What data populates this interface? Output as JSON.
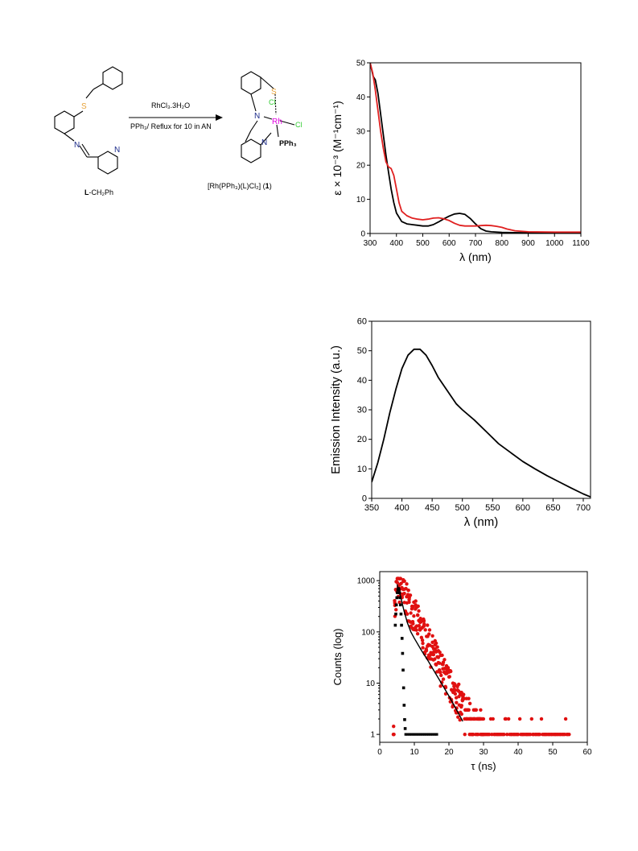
{
  "scheme": {
    "ligand_label_bold": "L",
    "ligand_label_rest": "-CH₂Ph",
    "arrow_top": "RhCl₃.3H₂O",
    "arrow_bottom": "PPh₃/ Reflux for 10 in AN",
    "product_label": "[Rh(PPh₃)(L)Cl₂] (",
    "product_number": "1",
    "product_close": ")",
    "atoms": {
      "S": "S",
      "N": "N",
      "Rh": "Rh",
      "Cl": "Cl",
      "PPh3": "PPh₃"
    },
    "colors": {
      "S": "#e8a33a",
      "Rh": "#e000e0",
      "Cl": "#33cc33",
      "N": "#1b2a8a"
    }
  },
  "chart_data": [
    {
      "type": "line",
      "xlabel": "λ (nm)",
      "ylabel": "ε × 10⁻³ (M⁻¹cm⁻¹)",
      "xlim": [
        300,
        1100
      ],
      "ylim": [
        0,
        50
      ],
      "xticks": [
        300,
        400,
        500,
        600,
        700,
        800,
        900,
        1000,
        1100
      ],
      "yticks": [
        0,
        10,
        20,
        30,
        40,
        50
      ],
      "series": [
        {
          "color": "#000000",
          "x": [
            300,
            312,
            320,
            330,
            340,
            350,
            360,
            370,
            380,
            390,
            400,
            420,
            440,
            460,
            480,
            500,
            520,
            540,
            560,
            580,
            600,
            620,
            640,
            660,
            680,
            700,
            720,
            740,
            760,
            800,
            900,
            1000,
            1100
          ],
          "y": [
            50,
            46,
            45,
            41,
            35,
            29,
            23,
            18,
            13,
            9,
            6,
            3.5,
            2.8,
            2.6,
            2.4,
            2.2,
            2.2,
            2.6,
            3.4,
            4.3,
            5.1,
            5.7,
            5.9,
            5.6,
            4.4,
            2.8,
            1.4,
            0.7,
            0.5,
            0.3,
            0.2,
            0.2,
            0.2
          ]
        },
        {
          "color": "#e02020",
          "x": [
            300,
            310,
            320,
            330,
            340,
            350,
            360,
            370,
            380,
            390,
            400,
            410,
            420,
            440,
            460,
            480,
            500,
            520,
            540,
            560,
            580,
            600,
            620,
            640,
            660,
            680,
            700,
            720,
            740,
            760,
            780,
            800,
            820,
            850,
            900,
            1000,
            1100
          ],
          "y": [
            50,
            47,
            42,
            36,
            30,
            25,
            21,
            19.5,
            19,
            17,
            13,
            9,
            6.5,
            5.2,
            4.5,
            4.2,
            4.0,
            4.2,
            4.5,
            4.6,
            4.3,
            3.8,
            3.0,
            2.4,
            2.2,
            2.2,
            2.2,
            2.3,
            2.4,
            2.3,
            2.1,
            1.8,
            1.3,
            0.8,
            0.5,
            0.4,
            0.4
          ]
        }
      ]
    },
    {
      "type": "line",
      "xlabel": "λ (nm)",
      "ylabel": "Emission Intensity (a.u.)",
      "xlim": [
        350,
        712
      ],
      "ylim": [
        0,
        60
      ],
      "xticks": [
        350,
        400,
        450,
        500,
        550,
        600,
        650,
        700
      ],
      "yticks": [
        0,
        10,
        20,
        30,
        40,
        50,
        60
      ],
      "series": [
        {
          "color": "#000000",
          "x": [
            350,
            360,
            370,
            380,
            390,
            400,
            410,
            420,
            430,
            440,
            450,
            460,
            470,
            480,
            490,
            500,
            520,
            540,
            560,
            580,
            600,
            620,
            640,
            660,
            680,
            700,
            712
          ],
          "y": [
            5.5,
            12,
            20,
            29,
            37,
            44,
            48.5,
            50.5,
            50.5,
            48.5,
            45,
            41,
            38,
            35,
            32,
            30,
            26.5,
            22.5,
            18.5,
            15.5,
            12.5,
            10,
            7.7,
            5.6,
            3.5,
            1.5,
            0.5
          ]
        }
      ]
    },
    {
      "type": "scatter",
      "xlabel": "τ (ns)",
      "ylabel": "Counts (log)",
      "xlim": [
        0,
        60
      ],
      "ylim": [
        0.7,
        1500
      ],
      "yscale": "log",
      "xticks": [
        0,
        10,
        20,
        30,
        40,
        50,
        60
      ],
      "yticks": [
        1,
        10,
        100,
        1000
      ],
      "ytick_labels": [
        "1",
        "10",
        "100",
        "1000"
      ],
      "fit_line": {
        "color": "#000000",
        "x": [
          5,
          6,
          7,
          8,
          9,
          10,
          12,
          14,
          16,
          18,
          20,
          22,
          24
        ],
        "y": [
          850,
          500,
          260,
          150,
          100,
          75,
          44,
          27,
          16,
          9.5,
          5.6,
          3.2,
          1.8
        ]
      },
      "series": [
        {
          "color": "#e01010",
          "marker": "circle"
        },
        {
          "color": "#000000",
          "marker": "square"
        }
      ]
    }
  ]
}
